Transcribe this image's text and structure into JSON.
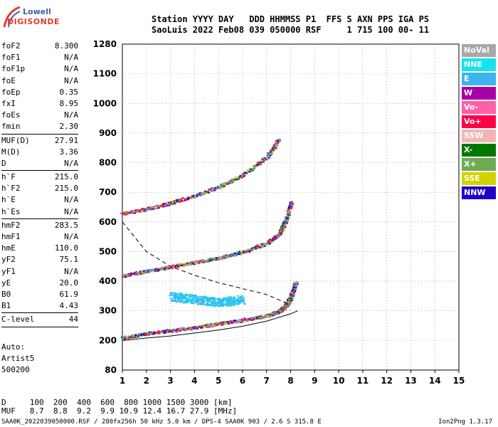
{
  "logo": {
    "line1": "Lowell",
    "line2": "DIGISONDE"
  },
  "header": {
    "line1": "Station YYYY DAY   DDD HHMMSS P1  FFS S AXN PPS IGA PS",
    "line2": "SaoLuis 2022 Feb08 039 050000 RSF     1 715 100 00- 11"
  },
  "params": [
    {
      "name": "foF2",
      "value": "8.300"
    },
    {
      "name": "foF1",
      "value": "N/A"
    },
    {
      "name": "foF1p",
      "value": "N/A"
    },
    {
      "name": "foE",
      "value": "N/A"
    },
    {
      "name": "foEp",
      "value": "0.35"
    },
    {
      "name": "fxI",
      "value": "8.95"
    },
    {
      "name": "foEs",
      "value": "N/A"
    },
    {
      "name": "fmin",
      "value": "2.30"
    },
    {
      "sep": true
    },
    {
      "name": "MUF(D)",
      "value": "27.91"
    },
    {
      "name": "M(D)",
      "value": "3.36"
    },
    {
      "name": "D",
      "value": "N/A"
    },
    {
      "sep": true
    },
    {
      "name": "h`F",
      "value": "215.0"
    },
    {
      "name": "h`F2",
      "value": "215.0"
    },
    {
      "name": "h`E",
      "value": "N/A"
    },
    {
      "name": "h`Es",
      "value": "N/A"
    },
    {
      "sep": true
    },
    {
      "name": "hmF2",
      "value": "283.5"
    },
    {
      "name": "hmF1",
      "value": "N/A"
    },
    {
      "name": "hmE",
      "value": "110.0"
    },
    {
      "name": "yF2",
      "value": "75.1"
    },
    {
      "name": "yF1",
      "value": "N/A"
    },
    {
      "name": "yE",
      "value": "20.0"
    },
    {
      "name": "B0",
      "value": "61.9"
    },
    {
      "name": "B1",
      "value": "4.43"
    },
    {
      "sep": true
    },
    {
      "name": "C-level",
      "value": "44"
    },
    {
      "sep": true
    }
  ],
  "auto": {
    "line1": "Auto:",
    "line2": "Artist5",
    "line3": "500200"
  },
  "muf_table": {
    "d_line": "D     100  200  400  600  800 1000 1500 3000 [km]",
    "muf_line": "MUF   8.7  8.8  9.2  9.9 10.9 12.4 16.7 27.9 [MHz]"
  },
  "footer": "SAA0K_2022039050000.RSF / 280fx256h 50 kHz 5.0 km / DPS-4 SAA0K 903 / 2.6 S 315.8 E",
  "version": "Ion2Png 1.3.17",
  "legend": [
    {
      "label": "NoVal",
      "color": "#a8a8a8"
    },
    {
      "label": "NNE",
      "color": "#16e3ee"
    },
    {
      "label": "E",
      "color": "#3cb4f0"
    },
    {
      "label": "W",
      "color": "#a800a8"
    },
    {
      "label": "Vo-",
      "color": "#ff5fa8"
    },
    {
      "label": "Vo+",
      "color": "#ff0046"
    },
    {
      "label": "SSW",
      "color": "#f5b4b4"
    },
    {
      "label": "X-",
      "color": "#007800"
    },
    {
      "label": "X+",
      "color": "#6eaa50"
    },
    {
      "label": "SSE",
      "color": "#d2d200"
    },
    {
      "label": "NNW",
      "color": "#1e00c8"
    }
  ],
  "chart_data": {
    "type": "scatter",
    "x_ticks": [
      1,
      2,
      3,
      4,
      5,
      6,
      7,
      8,
      9,
      10,
      11,
      12,
      13,
      14,
      15
    ],
    "y_ticks": [
      80,
      200,
      300,
      400,
      500,
      600,
      700,
      800,
      900,
      1000,
      1100,
      1280
    ],
    "xlim": [
      1,
      15
    ],
    "grid": true,
    "traces": [
      {
        "name": "O-trace 1st hop",
        "x": [
          1.0,
          2.0,
          3.0,
          4.0,
          5.0,
          6.0,
          7.0,
          7.5,
          7.8,
          8.0,
          8.2
        ],
        "y": [
          210,
          225,
          235,
          245,
          258,
          270,
          285,
          300,
          320,
          350,
          400
        ]
      },
      {
        "name": "O-trace 2nd hop",
        "x": [
          1.0,
          2.0,
          3.0,
          4.0,
          5.0,
          6.0,
          7.0,
          7.5,
          7.8,
          8.0
        ],
        "y": [
          420,
          435,
          450,
          465,
          480,
          500,
          530,
          560,
          610,
          670
        ]
      },
      {
        "name": "O-trace 3rd hop",
        "x": [
          1.0,
          2.0,
          3.0,
          4.0,
          5.0,
          6.0,
          7.0,
          7.5
        ],
        "y": [
          630,
          645,
          665,
          690,
          720,
          760,
          820,
          880
        ]
      },
      {
        "name": "spread cluster",
        "x": [
          3.0,
          3.5,
          4.0,
          4.5,
          5.0,
          5.5,
          6.0
        ],
        "y": [
          350,
          345,
          340,
          335,
          330,
          335,
          340
        ]
      },
      {
        "name": "profile dashed",
        "x": [
          1.0,
          2.0,
          3.0,
          4.0,
          5.0,
          6.0,
          7.0,
          8.0
        ],
        "y": [
          600,
          500,
          450,
          420,
          395,
          375,
          355,
          320
        ]
      },
      {
        "name": "profile solid",
        "x": [
          1.0,
          2.0,
          3.0,
          4.0,
          5.0,
          6.0,
          7.0,
          8.0,
          8.3
        ],
        "y": [
          200,
          208,
          215,
          225,
          235,
          248,
          265,
          290,
          300
        ]
      }
    ]
  }
}
